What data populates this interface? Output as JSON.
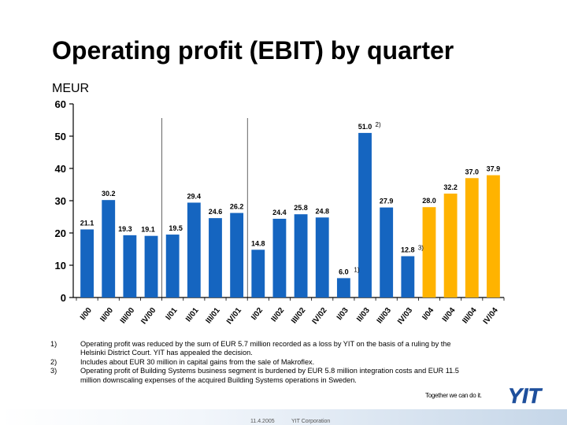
{
  "slide": {
    "title": "Operating profit (EBIT) by quarter",
    "unit": "MEUR",
    "tagline": "Together we can do it.",
    "logo_text": "YIT",
    "footer": {
      "date": "11.4.2005",
      "company": "YIT Corporation"
    }
  },
  "chart_data": {
    "type": "bar",
    "title": "Operating profit (EBIT) by quarter",
    "ylabel": "MEUR",
    "ylim": [
      0,
      60
    ],
    "yticks": [
      0,
      10,
      20,
      30,
      40,
      50,
      60
    ],
    "categories": [
      "I/00",
      "II/00",
      "III/00",
      "IV/00",
      "I/01",
      "II/01",
      "III/01",
      "IV/01",
      "I/02",
      "II/02",
      "III/02",
      "IV/02",
      "I/03",
      "II/03",
      "III/03",
      "IV/03",
      "I/04",
      "II/04",
      "III/04",
      "IV/04"
    ],
    "values": [
      21.1,
      30.2,
      19.3,
      19.1,
      19.5,
      29.4,
      24.6,
      26.2,
      14.8,
      24.4,
      25.8,
      24.8,
      6.0,
      51.0,
      27.9,
      12.8,
      28.0,
      32.2,
      37.0,
      37.9
    ],
    "value_labels": [
      "21.1",
      "30.2",
      "19.3",
      "19.1",
      "19.5",
      "29.4",
      "24.6",
      "26.2",
      "14.8",
      "24.4",
      "25.8",
      "24.8",
      "6.0",
      "51.0",
      "27.9",
      "12.8",
      "28.0",
      "32.2",
      "37.0",
      "37.9"
    ],
    "footnote_refs": [
      "",
      "",
      "",
      "",
      "",
      "",
      "",
      "",
      "",
      "",
      "",
      "",
      "1)",
      "2)",
      "",
      "3)",
      "",
      "",
      "",
      ""
    ],
    "colors": [
      "#1565c0",
      "#1565c0",
      "#1565c0",
      "#1565c0",
      "#1565c0",
      "#1565c0",
      "#1565c0",
      "#1565c0",
      "#1565c0",
      "#1565c0",
      "#1565c0",
      "#1565c0",
      "#1565c0",
      "#1565c0",
      "#1565c0",
      "#1565c0",
      "#ffb300",
      "#ffb300",
      "#ffb300",
      "#ffb300"
    ],
    "grid": false,
    "legend": "none"
  },
  "notes": [
    {
      "num": "1)",
      "text": "Operating profit was reduced by the sum of EUR 5.7 million recorded as a loss by YIT on the basis of a ruling by the Helsinki District Court. YIT has appealed the decision."
    },
    {
      "num": "2)",
      "text": "Includes about EUR 30 million in capital gains from the sale of Makroflex."
    },
    {
      "num": "3)",
      "text": "Operating profit of Building Systems business segment is burdened by EUR 5.8 million integration costs and EUR 11.5 million downscaling expenses of the acquired Building Systems operations in Sweden."
    }
  ]
}
